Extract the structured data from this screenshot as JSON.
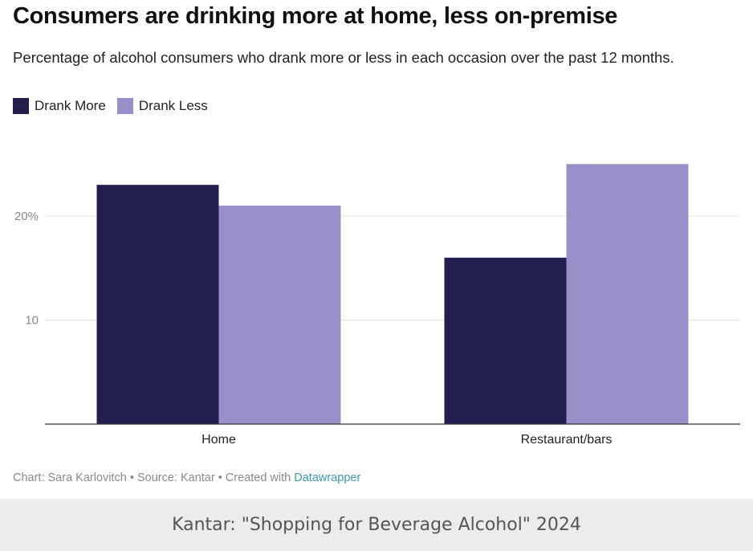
{
  "title": "Consumers are drinking more at home, less on-premise",
  "subtitle": "Percentage of alcohol consumers who drank more or less in each occasion over the past 12 months.",
  "credit": {
    "prefix": "Chart: Sara Karlovitch • Source: Kantar • Created with ",
    "link": "Datawrapper"
  },
  "caption": "Kantar: \"Shopping for Beverage Alcohol\" 2024",
  "chart_data": {
    "type": "bar",
    "categories": [
      "Home",
      "Restaurant/bars"
    ],
    "series": [
      {
        "name": "Drank More",
        "values": [
          23,
          16
        ],
        "color": "#221f4e"
      },
      {
        "name": "Drank Less",
        "values": [
          21,
          25
        ],
        "color": "#9990c9"
      }
    ],
    "ylim": [
      0,
      27
    ],
    "yticks": [
      {
        "value": 10,
        "label": "10"
      },
      {
        "value": 20,
        "label": "20%"
      }
    ],
    "grid": true,
    "legend": "top-left",
    "title": "Consumers are drinking more at home, less on-premise",
    "xlabel": "",
    "ylabel": ""
  }
}
